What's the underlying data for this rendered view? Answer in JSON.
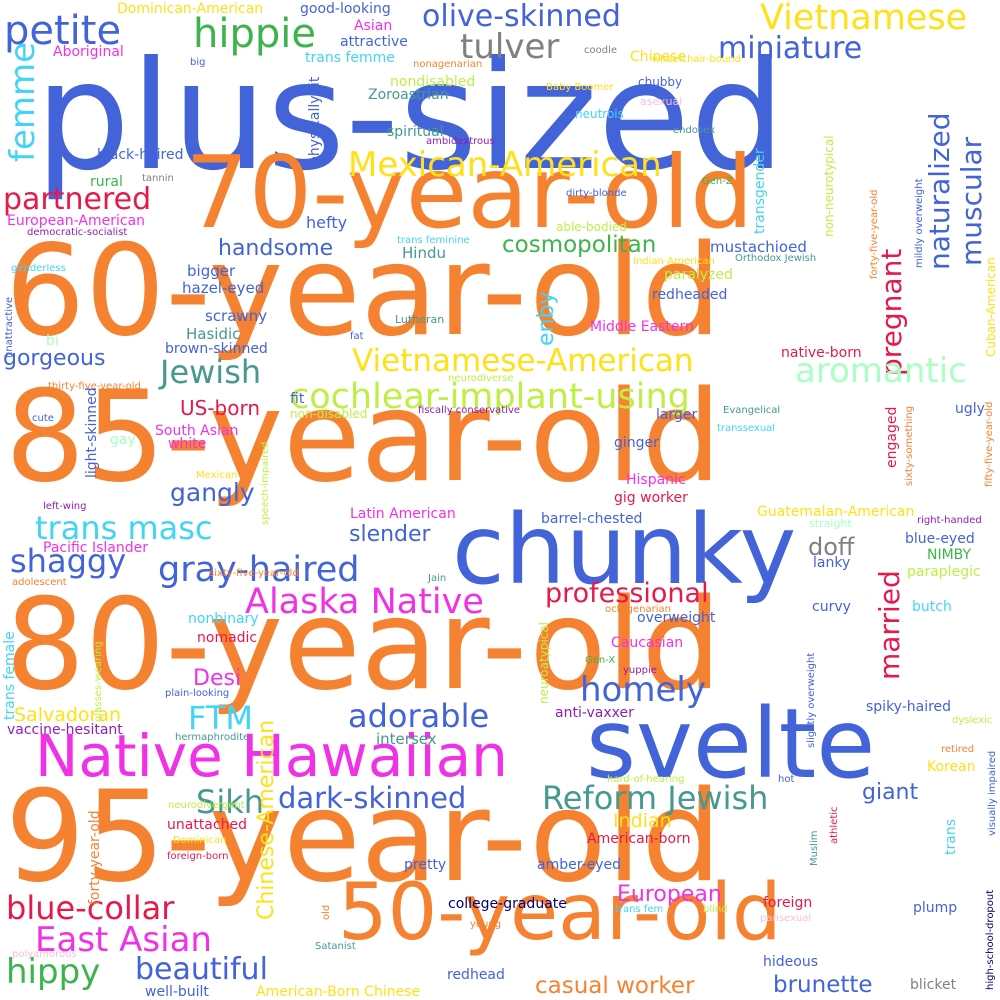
{
  "palette": {
    "orange": "#f58231",
    "blue": "#4363d8",
    "magenta": "#f032e6",
    "green": "#3cb44b",
    "yellow": "#ffe119",
    "lime": "#bfef45",
    "teal": "#469990",
    "cyan": "#42d4f4",
    "red": "#e6194b",
    "grey": "#808080",
    "mint": "#aaffc3",
    "navy": "#000075",
    "purple": "#911eb4",
    "pink": "#fabed4"
  },
  "words": [
    {
      "text": "plus-sized",
      "color": "blue"
    },
    {
      "text": "70-year-old",
      "color": "orange"
    },
    {
      "text": "60-year-old",
      "color": "orange"
    },
    {
      "text": "85-year-old",
      "color": "orange"
    },
    {
      "text": "chunky",
      "color": "blue"
    },
    {
      "text": "80-year-old",
      "color": "orange"
    },
    {
      "text": "svelte",
      "color": "blue"
    },
    {
      "text": "Native Hawaiian",
      "color": "magenta"
    },
    {
      "text": "95-year-old",
      "color": "orange"
    },
    {
      "text": "50-year-old",
      "color": "orange"
    },
    {
      "text": "petite",
      "color": "blue"
    },
    {
      "text": "hippie",
      "color": "green"
    },
    {
      "text": "olive-skinned",
      "color": "blue"
    },
    {
      "text": "Vietnamese",
      "color": "yellow"
    },
    {
      "text": "tulver",
      "color": "grey"
    },
    {
      "text": "miniature",
      "color": "blue"
    },
    {
      "text": "femme",
      "color": "cyan"
    },
    {
      "text": "partnered",
      "color": "red"
    },
    {
      "text": "Mexican-American",
      "color": "yellow"
    },
    {
      "text": "naturalized",
      "color": "blue"
    },
    {
      "text": "muscular",
      "color": "blue"
    },
    {
      "text": "pregnant",
      "color": "red"
    },
    {
      "text": "handsome",
      "color": "blue"
    },
    {
      "text": "cosmopolitan",
      "color": "green"
    },
    {
      "text": "Jewish",
      "color": "teal"
    },
    {
      "text": "Vietnamese-American",
      "color": "yellow"
    },
    {
      "text": "aromantic",
      "color": "mint"
    },
    {
      "text": "cochlear-implant-using",
      "color": "lime"
    },
    {
      "text": "gorgeous",
      "color": "blue"
    },
    {
      "text": "trans masc",
      "color": "cyan"
    },
    {
      "text": "shaggy",
      "color": "blue"
    },
    {
      "text": "gray-haired",
      "color": "blue"
    },
    {
      "text": "gangly",
      "color": "blue"
    },
    {
      "text": "Alaska Native",
      "color": "magenta"
    },
    {
      "text": "professional",
      "color": "red"
    },
    {
      "text": "married",
      "color": "red"
    },
    {
      "text": "homely",
      "color": "blue"
    },
    {
      "text": "FTM",
      "color": "cyan"
    },
    {
      "text": "adorable",
      "color": "blue"
    },
    {
      "text": "Sikh",
      "color": "teal"
    },
    {
      "text": "dark-skinned",
      "color": "blue"
    },
    {
      "text": "Reform Jewish",
      "color": "teal"
    },
    {
      "text": "blue-collar",
      "color": "red"
    },
    {
      "text": "East Asian",
      "color": "magenta"
    },
    {
      "text": "hippy",
      "color": "green"
    },
    {
      "text": "beautiful",
      "color": "blue"
    },
    {
      "text": "casual worker",
      "color": "orange"
    },
    {
      "text": "brunette",
      "color": "blue"
    },
    {
      "text": "Chinese-American",
      "color": "yellow"
    },
    {
      "text": "doff",
      "color": "grey"
    },
    {
      "text": "Desi",
      "color": "magenta"
    },
    {
      "text": "Salvadoran",
      "color": "yellow"
    },
    {
      "text": "enby",
      "color": "cyan"
    },
    {
      "text": "slender",
      "color": "blue"
    },
    {
      "text": "European",
      "color": "magenta"
    },
    {
      "text": "giant",
      "color": "blue"
    },
    {
      "text": "Indian",
      "color": "yellow"
    },
    {
      "text": "intersex",
      "color": "teal"
    },
    {
      "text": "US-born",
      "color": "red"
    },
    {
      "text": "Hindu",
      "color": "teal"
    },
    {
      "text": "hefty",
      "color": "blue"
    },
    {
      "text": "bigger",
      "color": "blue"
    },
    {
      "text": "hazel-eyed",
      "color": "blue"
    },
    {
      "text": "scrawny",
      "color": "blue"
    },
    {
      "text": "Hasidic",
      "color": "teal"
    },
    {
      "text": "brown-skinned",
      "color": "blue"
    },
    {
      "text": "Dominican-American",
      "color": "yellow"
    },
    {
      "text": "good-looking",
      "color": "blue"
    },
    {
      "text": "Asian",
      "color": "magenta"
    },
    {
      "text": "attractive",
      "color": "blue"
    },
    {
      "text": "Aboriginal",
      "color": "magenta"
    },
    {
      "text": "trans femme",
      "color": "cyan"
    },
    {
      "text": "Chinese",
      "color": "yellow"
    },
    {
      "text": "big",
      "color": "blue"
    },
    {
      "text": "coodle",
      "color": "grey"
    },
    {
      "text": "wheelchair-bound",
      "color": "yellow"
    },
    {
      "text": "nondisabled",
      "color": "lime"
    },
    {
      "text": "physically fit",
      "color": "blue"
    },
    {
      "text": "chubby",
      "color": "blue"
    },
    {
      "text": "Baby Boomer",
      "color": "yellow"
    },
    {
      "text": "Zoroastrian",
      "color": "teal"
    },
    {
      "text": "nonagenarian",
      "color": "orange"
    },
    {
      "text": "neutrois",
      "color": "cyan"
    },
    {
      "text": "asexual",
      "color": "pink"
    },
    {
      "text": "spiritual",
      "color": "teal"
    },
    {
      "text": "ambidextrous",
      "color": "purple"
    },
    {
      "text": "endosex",
      "color": "teal"
    },
    {
      "text": "black-haired",
      "color": "blue"
    },
    {
      "text": "rural",
      "color": "green"
    },
    {
      "text": "tannin",
      "color": "grey"
    },
    {
      "text": "transgender",
      "color": "cyan"
    },
    {
      "text": "dirty-blonde",
      "color": "blue"
    },
    {
      "text": "Gen-Z",
      "color": "green"
    },
    {
      "text": "European-American",
      "color": "magenta"
    },
    {
      "text": "democratic-socialist",
      "color": "purple"
    },
    {
      "text": "able-bodied",
      "color": "lime"
    },
    {
      "text": "non-neurotypical",
      "color": "lime"
    },
    {
      "text": "mildly overweight",
      "color": "blue"
    },
    {
      "text": "forty-five-year-old",
      "color": "orange"
    },
    {
      "text": "genderless",
      "color": "cyan"
    },
    {
      "text": "trans feminine",
      "color": "cyan"
    },
    {
      "text": "mustachioed",
      "color": "blue"
    },
    {
      "text": "Indian-American",
      "color": "yellow"
    },
    {
      "text": "Orthodox Jewish",
      "color": "teal"
    },
    {
      "text": "Cuban-American",
      "color": "yellow"
    },
    {
      "text": "unattractive",
      "color": "blue"
    },
    {
      "text": "bi",
      "color": "mint"
    },
    {
      "text": "paralyzed",
      "color": "lime"
    },
    {
      "text": "redheaded",
      "color": "blue"
    },
    {
      "text": "Lutheran",
      "color": "teal"
    },
    {
      "text": "fat",
      "color": "blue"
    },
    {
      "text": "Middle Eastern",
      "color": "magenta"
    },
    {
      "text": "native-born",
      "color": "red"
    },
    {
      "text": "thirty-five-year-old",
      "color": "orange"
    },
    {
      "text": "neurodiverse",
      "color": "lime"
    },
    {
      "text": "cute",
      "color": "blue"
    },
    {
      "text": "light-skinned",
      "color": "blue"
    },
    {
      "text": "fit",
      "color": "blue"
    },
    {
      "text": "non-disabled",
      "color": "lime"
    },
    {
      "text": "fiscally conservative",
      "color": "purple"
    },
    {
      "text": "larger",
      "color": "blue"
    },
    {
      "text": "Evangelical",
      "color": "teal"
    },
    {
      "text": "ugly",
      "color": "blue"
    },
    {
      "text": "sixty-something",
      "color": "orange"
    },
    {
      "text": "fifty-five-year-old",
      "color": "orange"
    },
    {
      "text": "South Asian",
      "color": "magenta"
    },
    {
      "text": "white",
      "color": "magenta"
    },
    {
      "text": "transsexual",
      "color": "cyan"
    },
    {
      "text": "engaged",
      "color": "red"
    },
    {
      "text": "gay",
      "color": "mint"
    },
    {
      "text": "ginger",
      "color": "blue"
    },
    {
      "text": "speech-impaired",
      "color": "lime"
    },
    {
      "text": "Hispanic",
      "color": "magenta"
    },
    {
      "text": "Mexican",
      "color": "yellow"
    },
    {
      "text": "gig worker",
      "color": "red"
    },
    {
      "text": "left-wing",
      "color": "purple"
    },
    {
      "text": "Latin American",
      "color": "magenta"
    },
    {
      "text": "barrel-chested",
      "color": "blue"
    },
    {
      "text": "Guatemalan-American",
      "color": "yellow"
    },
    {
      "text": "straight",
      "color": "mint"
    },
    {
      "text": "right-handed",
      "color": "purple"
    },
    {
      "text": "Pacific Islander",
      "color": "magenta"
    },
    {
      "text": "sixty-five-year-old",
      "color": "orange"
    },
    {
      "text": "blue-eyed",
      "color": "blue"
    },
    {
      "text": "NIMBY",
      "color": "green"
    },
    {
      "text": "lanky",
      "color": "blue"
    },
    {
      "text": "paraplegic",
      "color": "lime"
    },
    {
      "text": "adolescent",
      "color": "orange"
    },
    {
      "text": "Jain",
      "color": "teal"
    },
    {
      "text": "octogenarian",
      "color": "orange"
    },
    {
      "text": "curvy",
      "color": "blue"
    },
    {
      "text": "trans female",
      "color": "cyan"
    },
    {
      "text": "nonbinary",
      "color": "cyan"
    },
    {
      "text": "overweight",
      "color": "blue"
    },
    {
      "text": "butch",
      "color": "cyan"
    },
    {
      "text": "nomadic",
      "color": "red"
    },
    {
      "text": "Caucasian",
      "color": "magenta"
    },
    {
      "text": "neuroatypical",
      "color": "lime"
    },
    {
      "text": "slightly overweight",
      "color": "blue"
    },
    {
      "text": "glasses-wearing",
      "color": "lime"
    },
    {
      "text": "Gen-X",
      "color": "green"
    },
    {
      "text": "yuppie",
      "color": "purple"
    },
    {
      "text": "plain-looking",
      "color": "blue"
    },
    {
      "text": "spiky-haired",
      "color": "blue"
    },
    {
      "text": "dyslexic",
      "color": "lime"
    },
    {
      "text": "anti-vaxxer",
      "color": "purple"
    },
    {
      "text": "vaccine-hesitant",
      "color": "purple"
    },
    {
      "text": "hermaphrodite",
      "color": "teal"
    },
    {
      "text": "retired",
      "color": "orange"
    },
    {
      "text": "Korean",
      "color": "yellow"
    },
    {
      "text": "hard-of-hearing",
      "color": "lime"
    },
    {
      "text": "hot",
      "color": "blue"
    },
    {
      "text": "visually impaired",
      "color": "blue"
    },
    {
      "text": "high-school-dropout",
      "color": "navy"
    },
    {
      "text": "athletic",
      "color": "red"
    },
    {
      "text": "Muslim",
      "color": "teal"
    },
    {
      "text": "trans",
      "color": "cyan"
    },
    {
      "text": "neurodivergent",
      "color": "lime"
    },
    {
      "text": "forty-year-old",
      "color": "orange"
    },
    {
      "text": "unattached",
      "color": "red"
    },
    {
      "text": "American-born",
      "color": "red"
    },
    {
      "text": "amber-eyed",
      "color": "blue"
    },
    {
      "text": "Dominican",
      "color": "yellow"
    },
    {
      "text": "pretty",
      "color": "blue"
    },
    {
      "text": "foreign-born",
      "color": "red"
    },
    {
      "text": "college-graduate",
      "color": "navy"
    },
    {
      "text": "foreign",
      "color": "red"
    },
    {
      "text": "trans fem",
      "color": "cyan"
    },
    {
      "text": "blind",
      "color": "lime"
    },
    {
      "text": "pansexual",
      "color": "pink"
    },
    {
      "text": "plump",
      "color": "blue"
    },
    {
      "text": "old",
      "color": "orange"
    },
    {
      "text": "young",
      "color": "orange"
    },
    {
      "text": "Satanist",
      "color": "teal"
    },
    {
      "text": "polyamorous",
      "color": "pink"
    },
    {
      "text": "redhead",
      "color": "blue"
    },
    {
      "text": "hideous",
      "color": "blue"
    },
    {
      "text": "well-built",
      "color": "blue"
    },
    {
      "text": "American-Born Chinese",
      "color": "yellow"
    },
    {
      "text": "blicket",
      "color": "grey"
    }
  ]
}
